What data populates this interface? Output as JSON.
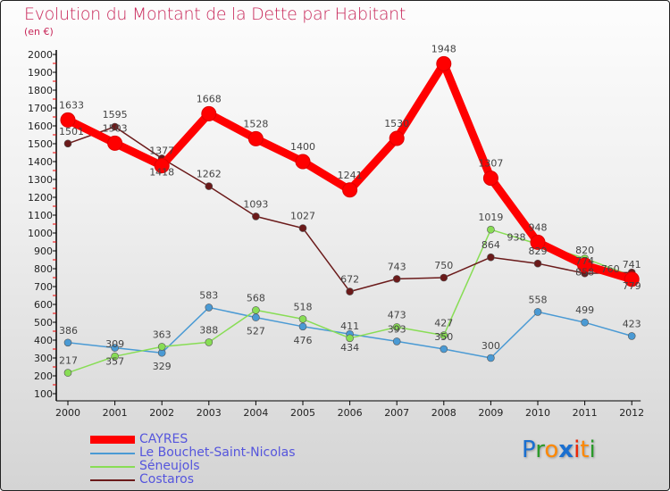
{
  "chart_data": {
    "type": "line",
    "title": "Evolution du Montant de la Dette par Habitant",
    "subtitle": "(en €)",
    "xlabel": "",
    "ylabel": "",
    "x": [
      "2000",
      "2001",
      "2002",
      "2003",
      "2004",
      "2005",
      "2006",
      "2007",
      "2008",
      "2009",
      "2010",
      "2011",
      "2012"
    ],
    "ylim": [
      100,
      2000
    ],
    "yticks": [
      "100",
      "200",
      "300",
      "400",
      "500",
      "600",
      "700",
      "800",
      "900",
      "1000",
      "1100",
      "1200",
      "1300",
      "1400",
      "1500",
      "1600",
      "1700",
      "1800",
      "1900",
      "2000"
    ],
    "grid": false,
    "legend_position": "bottom-left",
    "series": [
      {
        "name": "CAYRES",
        "color": "#ff0000",
        "values": [
          1633,
          1503,
          1377,
          1668,
          1528,
          1400,
          1241,
          1530,
          1948,
          1307,
          948,
          820,
          741
        ]
      },
      {
        "name": "Le Bouchet-Saint-Nicolas",
        "color": "#4a9ad4",
        "values": [
          386,
          357,
          329,
          583,
          527,
          476,
          434,
          393,
          350,
          300,
          558,
          499,
          423
        ]
      },
      {
        "name": "Séneujols",
        "color": "#88dd55",
        "values": [
          217,
          309,
          363,
          388,
          568,
          518,
          411,
          473,
          427,
          1019,
          938,
          858,
          760
        ]
      },
      {
        "name": "Costaros",
        "color": "#6b1a1a",
        "values": [
          1501,
          1595,
          1418,
          1262,
          1093,
          1027,
          672,
          743,
          750,
          864,
          829,
          774,
          779
        ]
      }
    ]
  },
  "logo": {
    "text": "Proxiti",
    "letters": [
      "P",
      "r",
      "o",
      "x",
      "i",
      "t",
      "i"
    ],
    "colors": [
      "#1a6fd0",
      "#2a9a2a",
      "#ff8800",
      "#1a6fd0",
      "#ee2200",
      "#ff8800",
      "#2a9a2a"
    ]
  }
}
